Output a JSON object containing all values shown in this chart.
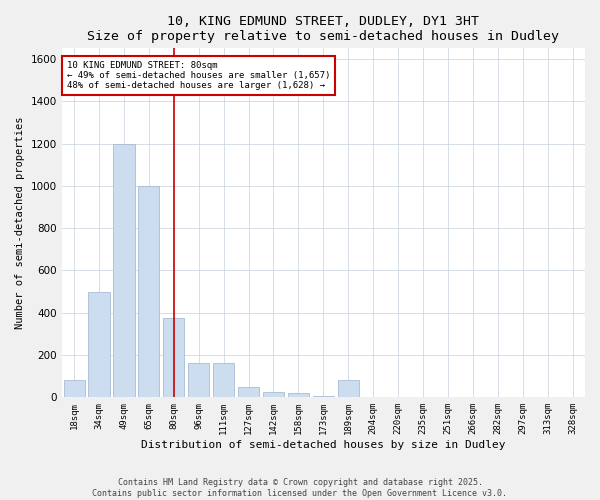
{
  "title": "10, KING EDMUND STREET, DUDLEY, DY1 3HT",
  "subtitle": "Size of property relative to semi-detached houses in Dudley",
  "xlabel": "Distribution of semi-detached houses by size in Dudley",
  "ylabel": "Number of semi-detached properties",
  "categories": [
    "18sqm",
    "34sqm",
    "49sqm",
    "65sqm",
    "80sqm",
    "96sqm",
    "111sqm",
    "127sqm",
    "142sqm",
    "158sqm",
    "173sqm",
    "189sqm",
    "204sqm",
    "220sqm",
    "235sqm",
    "251sqm",
    "266sqm",
    "282sqm",
    "297sqm",
    "313sqm",
    "328sqm"
  ],
  "values": [
    80,
    500,
    1200,
    1000,
    375,
    160,
    160,
    50,
    25,
    20,
    5,
    80,
    0,
    0,
    0,
    0,
    0,
    0,
    0,
    0,
    0
  ],
  "bar_color": "#ccddf0",
  "bar_edge_color": "#aabbd4",
  "vline_x_index": 4,
  "vline_color": "#cc0000",
  "annotation_text": "10 KING EDMUND STREET: 80sqm\n← 49% of semi-detached houses are smaller (1,657)\n48% of semi-detached houses are larger (1,628) →",
  "annotation_box_color": "#cc0000",
  "ylim": [
    0,
    1650
  ],
  "yticks": [
    0,
    200,
    400,
    600,
    800,
    1000,
    1200,
    1400,
    1600
  ],
  "footer1": "Contains HM Land Registry data © Crown copyright and database right 2025.",
  "footer2": "Contains public sector information licensed under the Open Government Licence v3.0.",
  "bg_color": "#f0f0f0",
  "plot_bg_color": "#ffffff",
  "grid_color": "#c8d0dc"
}
